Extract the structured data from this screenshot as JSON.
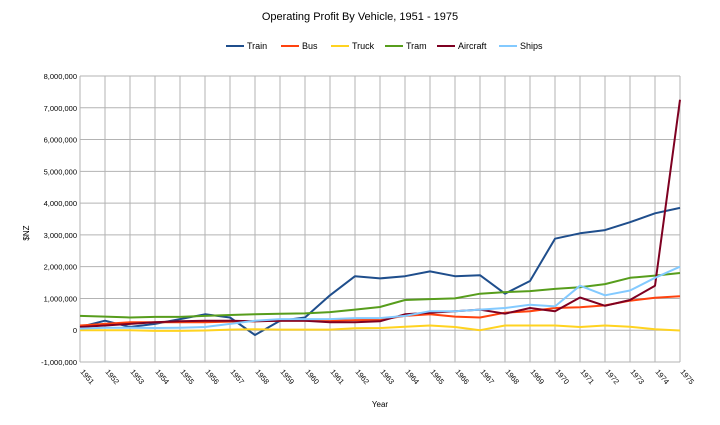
{
  "chart_data": {
    "type": "line",
    "title": "Operating Profit By Vehicle, 1951 - 1975",
    "xlabel": "Year",
    "ylabel": "$NZ",
    "legend_position": "top",
    "grid": true,
    "ylim": [
      -1000000,
      8000000
    ],
    "yticks": [
      -1000000,
      0,
      1000000,
      2000000,
      3000000,
      4000000,
      5000000,
      6000000,
      7000000,
      8000000
    ],
    "ytick_labels": [
      "-1,000,000",
      "0",
      "1,000,000",
      "2,000,000",
      "3,000,000",
      "4,000,000",
      "5,000,000",
      "6,000,000",
      "7,000,000",
      "8,000,000"
    ],
    "categories": [
      "1951",
      "1952",
      "1953",
      "1954",
      "1955",
      "1956",
      "1957",
      "1958",
      "1959",
      "1960",
      "1961",
      "1962",
      "1963",
      "1964",
      "1965",
      "1966",
      "1967",
      "1968",
      "1969",
      "1970",
      "1971",
      "1972",
      "1973",
      "1974",
      "1975"
    ],
    "series": [
      {
        "name": "Train",
        "color": "#1f4e8c",
        "values": [
          100000,
          300000,
          100000,
          200000,
          350000,
          500000,
          400000,
          -150000,
          300000,
          400000,
          1100000,
          1700000,
          1630000,
          1700000,
          1850000,
          1700000,
          1730000,
          1150000,
          1550000,
          2880000,
          3050000,
          3150000,
          3400000,
          3680000,
          3850000
        ]
      },
      {
        "name": "Bus",
        "color": "#ff420e",
        "values": [
          150000,
          200000,
          250000,
          250000,
          250000,
          250000,
          270000,
          280000,
          300000,
          300000,
          300000,
          320000,
          330000,
          450000,
          500000,
          430000,
          400000,
          550000,
          600000,
          700000,
          720000,
          780000,
          930000,
          1020000,
          1070000
        ]
      },
      {
        "name": "Truck",
        "color": "#ffd320",
        "values": [
          0,
          0,
          0,
          -20000,
          -20000,
          -10000,
          20000,
          30000,
          20000,
          20000,
          20000,
          60000,
          70000,
          110000,
          150000,
          100000,
          0,
          150000,
          150000,
          150000,
          100000,
          150000,
          110000,
          30000,
          -10000
        ]
      },
      {
        "name": "Tram",
        "color": "#579d1c",
        "values": [
          450000,
          430000,
          400000,
          420000,
          420000,
          450000,
          480000,
          500000,
          520000,
          530000,
          570000,
          650000,
          730000,
          950000,
          980000,
          1000000,
          1150000,
          1200000,
          1230000,
          1300000,
          1350000,
          1450000,
          1650000,
          1720000,
          1800000
        ]
      },
      {
        "name": "Aircraft",
        "color": "#7e0021",
        "values": [
          100000,
          150000,
          200000,
          250000,
          280000,
          300000,
          300000,
          280000,
          300000,
          300000,
          250000,
          250000,
          280000,
          500000,
          550000,
          600000,
          650000,
          520000,
          700000,
          600000,
          1030000,
          770000,
          950000,
          1400000,
          7250000
        ]
      },
      {
        "name": "Ships",
        "color": "#83caff",
        "values": [
          50000,
          80000,
          80000,
          70000,
          80000,
          100000,
          200000,
          300000,
          350000,
          350000,
          350000,
          380000,
          380000,
          450000,
          600000,
          600000,
          650000,
          700000,
          800000,
          750000,
          1400000,
          1100000,
          1250000,
          1650000,
          2000000
        ]
      }
    ]
  }
}
